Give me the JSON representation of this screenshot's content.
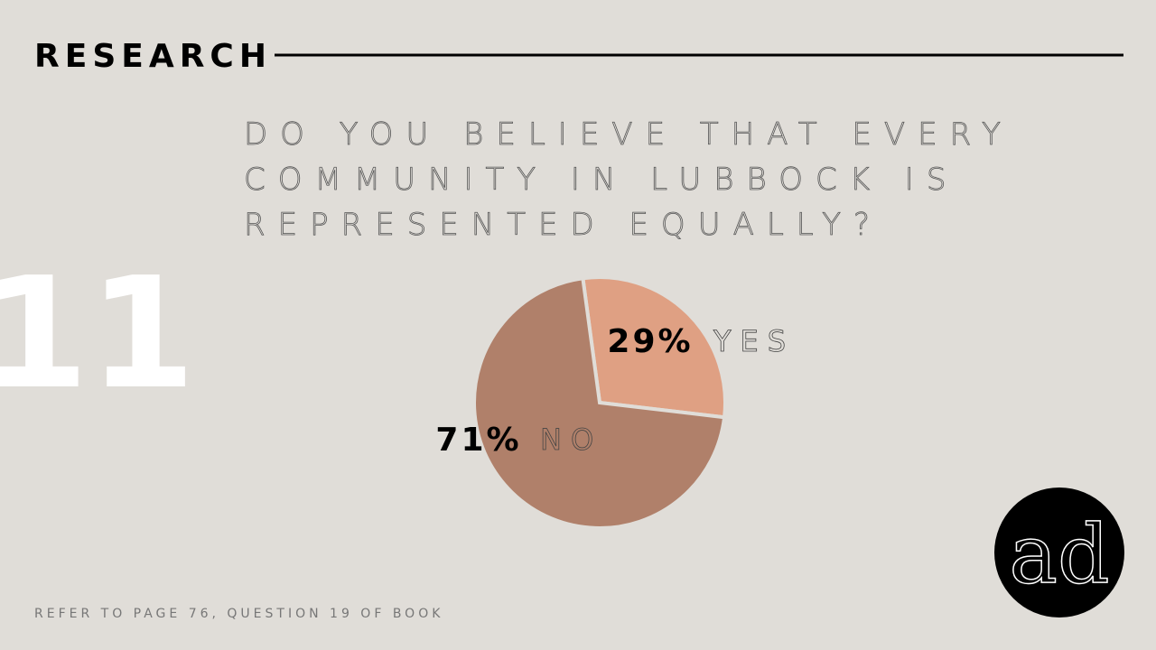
{
  "header": "RESEARCH",
  "slide_number": "11",
  "footer": "REFER TO PAGE 76, QUESTION 19 OF BOOK",
  "logo": "ad",
  "chart_data": {
    "type": "pie",
    "title": [
      "DO YOU BELIEVE THAT EVERY",
      "COMMUNITY IN LUBBOCK IS",
      "REPRESENTED EQUALLY?"
    ],
    "categories": [
      "YES",
      "NO"
    ],
    "values": [
      29,
      71
    ],
    "value_labels": [
      "29%",
      "71%"
    ],
    "colors": [
      "#dfa083",
      "#b0806a"
    ]
  }
}
